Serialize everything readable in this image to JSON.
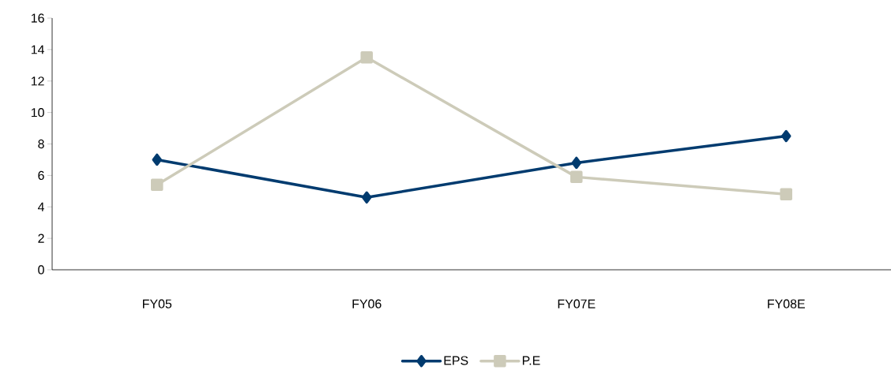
{
  "chart_data": {
    "type": "line",
    "categories": [
      "FY05",
      "FY06",
      "FY07E",
      "FY08E"
    ],
    "series": [
      {
        "name": "EPS",
        "color": "#003b6f",
        "values": [
          7.0,
          4.6,
          6.8,
          8.5
        ],
        "marker": "diamond"
      },
      {
        "name": "P.E",
        "color": "#cdcbb9",
        "values": [
          5.4,
          13.5,
          5.9,
          4.8
        ],
        "marker": "square"
      }
    ],
    "ylim": [
      0,
      16
    ],
    "yticks": [
      0,
      2,
      4,
      6,
      8,
      10,
      12,
      14,
      16
    ],
    "grid": false,
    "legend": "bottom",
    "line_style": "solid"
  }
}
